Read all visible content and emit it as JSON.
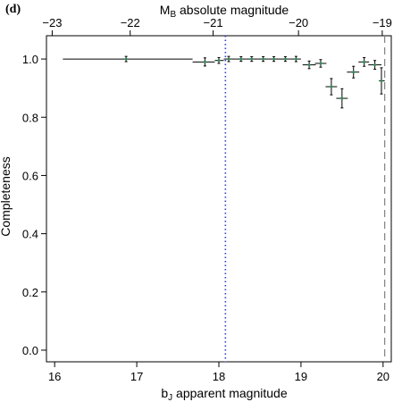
{
  "panel_tag": "(d)",
  "chart_data": {
    "type": "scatter",
    "title": "",
    "xlabel": "bJ apparent magnitude",
    "xlabel_main": "b",
    "xlabel_sub": "J",
    "xlabel_rest": " apparent magnitude",
    "ylabel": "Completeness",
    "top_xlabel": "MB absolute magnitude",
    "top_xlabel_main": "M",
    "top_xlabel_sub": "B",
    "top_xlabel_rest": " absolute magnitude",
    "xlim": [
      15.9,
      20.1
    ],
    "ylim": [
      -0.04,
      1.08
    ],
    "x_ticks": [
      "16",
      "17",
      "18",
      "19",
      "20"
    ],
    "x_tick_values": [
      16,
      17,
      18,
      19,
      20
    ],
    "y_ticks": [
      "0.0",
      "0.2",
      "0.4",
      "0.6",
      "0.8",
      "1.0"
    ],
    "y_tick_values": [
      0.0,
      0.2,
      0.4,
      0.6,
      0.8,
      1.0
    ],
    "top_ticks": [
      "−23",
      "−22",
      "−21",
      "−20",
      "−19"
    ],
    "top_tick_positions_bJ": [
      15.97,
      16.92,
      17.93,
      18.97,
      19.99
    ],
    "dotted_line_x": 18.08,
    "dashed_line_x": 20.02,
    "colors": {
      "points": "#2e8b57",
      "errors": "#000000",
      "dotted": "#3a3acc",
      "dashed": "#808080"
    },
    "points": [
      {
        "x": 16.87,
        "y": 1.0,
        "xlo": 16.1,
        "xhi": 17.68,
        "yerr": 0.009
      },
      {
        "x": 17.83,
        "y": 0.99,
        "xlo": 17.68,
        "xhi": 17.95,
        "yerr": 0.014
      },
      {
        "x": 18.0,
        "y": 0.995,
        "xlo": 17.95,
        "xhi": 18.06,
        "yerr": 0.01
      },
      {
        "x": 18.12,
        "y": 1.0,
        "xlo": 18.06,
        "xhi": 18.2,
        "yerr": 0.009
      },
      {
        "x": 18.27,
        "y": 1.0,
        "xlo": 18.2,
        "xhi": 18.33,
        "yerr": 0.008
      },
      {
        "x": 18.4,
        "y": 1.0,
        "xlo": 18.33,
        "xhi": 18.47,
        "yerr": 0.008
      },
      {
        "x": 18.54,
        "y": 1.0,
        "xlo": 18.47,
        "xhi": 18.6,
        "yerr": 0.008
      },
      {
        "x": 18.67,
        "y": 1.0,
        "xlo": 18.6,
        "xhi": 18.74,
        "yerr": 0.008
      },
      {
        "x": 18.81,
        "y": 1.0,
        "xlo": 18.74,
        "xhi": 18.87,
        "yerr": 0.008
      },
      {
        "x": 18.94,
        "y": 1.0,
        "xlo": 18.87,
        "xhi": 19.0,
        "yerr": 0.009
      },
      {
        "x": 19.1,
        "y": 0.98,
        "xlo": 19.02,
        "xhi": 19.18,
        "yerr": 0.013
      },
      {
        "x": 19.24,
        "y": 0.985,
        "xlo": 19.17,
        "xhi": 19.31,
        "yerr": 0.013
      },
      {
        "x": 19.37,
        "y": 0.905,
        "xlo": 19.3,
        "xhi": 19.44,
        "yerr": 0.028
      },
      {
        "x": 19.5,
        "y": 0.865,
        "xlo": 19.43,
        "xhi": 19.57,
        "yerr": 0.033
      },
      {
        "x": 19.64,
        "y": 0.955,
        "xlo": 19.56,
        "xhi": 19.71,
        "yerr": 0.02
      },
      {
        "x": 19.77,
        "y": 0.99,
        "xlo": 19.7,
        "xhi": 19.83,
        "yerr": 0.015
      },
      {
        "x": 19.9,
        "y": 0.98,
        "xlo": 19.82,
        "xhi": 19.98,
        "yerr": 0.015
      },
      {
        "x": 19.98,
        "y": 0.925,
        "xlo": 19.95,
        "xhi": 20.02,
        "yerr": 0.045
      }
    ]
  }
}
